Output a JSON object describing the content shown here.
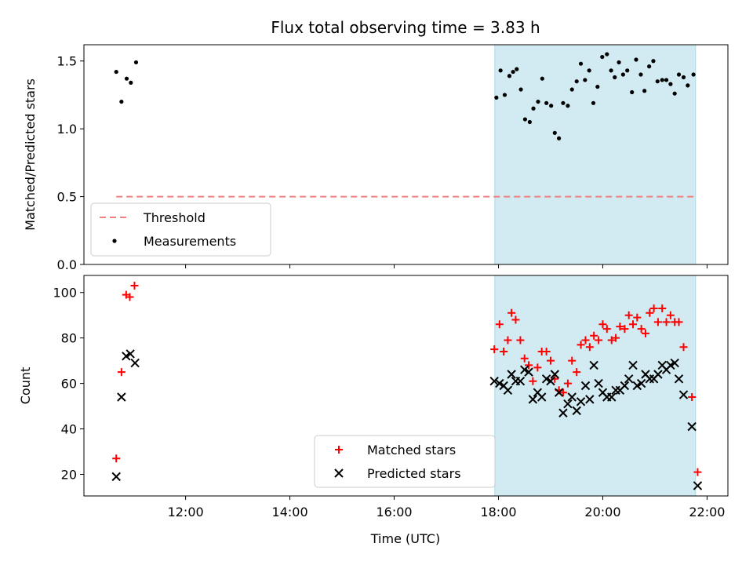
{
  "chart_data": {
    "title": "Flux total observing time = 3.83 h",
    "xlabel": "Time (UTC)",
    "x_unit": "hours UTC",
    "xlim": [
      10.05,
      22.4
    ],
    "x_ticks": [
      {
        "value": 12,
        "label": "12:00"
      },
      {
        "value": 14,
        "label": "14:00"
      },
      {
        "value": 16,
        "label": "16:00"
      },
      {
        "value": 18,
        "label": "18:00"
      },
      {
        "value": 20,
        "label": "20:00"
      },
      {
        "value": 22,
        "label": "22:00"
      }
    ],
    "shaded_span": [
      17.93,
      21.78
    ],
    "colors": {
      "span": "#add8e6",
      "threshold": "#f08080",
      "matched": "#ff0000",
      "predicted": "#000000",
      "measurement": "#000000"
    },
    "panels": [
      {
        "type": "scatter",
        "ylabel": "Matched/Predicted stars",
        "ylim": [
          0,
          1.62
        ],
        "y_ticks": [
          "0.0",
          "0.5",
          "1.0",
          "1.5"
        ],
        "legend_position": "lower-left",
        "threshold": {
          "name": "Threshold",
          "value": 0.5,
          "x_range": [
            10.67,
            21.78
          ]
        },
        "series": [
          {
            "name": "Measurements",
            "points": [
              [
                10.67,
                1.42
              ],
              [
                10.77,
                1.2
              ],
              [
                10.87,
                1.37
              ],
              [
                10.95,
                1.34
              ],
              [
                11.05,
                1.49
              ],
              [
                17.96,
                1.23
              ],
              [
                18.04,
                1.43
              ],
              [
                18.12,
                1.25
              ],
              [
                18.21,
                1.39
              ],
              [
                18.28,
                1.42
              ],
              [
                18.35,
                1.44
              ],
              [
                18.43,
                1.29
              ],
              [
                18.51,
                1.07
              ],
              [
                18.6,
                1.05
              ],
              [
                18.67,
                1.15
              ],
              [
                18.76,
                1.2
              ],
              [
                18.84,
                1.37
              ],
              [
                18.92,
                1.19
              ],
              [
                19.01,
                1.17
              ],
              [
                19.08,
                0.97
              ],
              [
                19.16,
                0.93
              ],
              [
                19.24,
                1.19
              ],
              [
                19.33,
                1.17
              ],
              [
                19.41,
                1.29
              ],
              [
                19.5,
                1.35
              ],
              [
                19.58,
                1.48
              ],
              [
                19.66,
                1.36
              ],
              [
                19.74,
                1.43
              ],
              [
                19.82,
                1.19
              ],
              [
                19.9,
                1.31
              ],
              [
                19.99,
                1.53
              ],
              [
                20.08,
                1.55
              ],
              [
                20.16,
                1.43
              ],
              [
                20.23,
                1.38
              ],
              [
                20.31,
                1.49
              ],
              [
                20.39,
                1.4
              ],
              [
                20.47,
                1.43
              ],
              [
                20.56,
                1.27
              ],
              [
                20.64,
                1.51
              ],
              [
                20.73,
                1.4
              ],
              [
                20.8,
                1.28
              ],
              [
                20.89,
                1.46
              ],
              [
                20.97,
                1.5
              ],
              [
                21.05,
                1.35
              ],
              [
                21.14,
                1.36
              ],
              [
                21.22,
                1.36
              ],
              [
                21.3,
                1.33
              ],
              [
                21.38,
                1.26
              ],
              [
                21.46,
                1.4
              ],
              [
                21.55,
                1.38
              ],
              [
                21.63,
                1.32
              ],
              [
                21.74,
                1.4
              ]
            ]
          }
        ]
      },
      {
        "type": "scatter",
        "ylabel": "Count",
        "ylim": [
          10.5,
          107.5
        ],
        "y_ticks": [
          "20",
          "40",
          "60",
          "80",
          "100"
        ],
        "legend_position": "lower-center",
        "series": [
          {
            "name": "Matched stars",
            "marker": "+",
            "points": [
              [
                10.67,
                27
              ],
              [
                10.77,
                65
              ],
              [
                10.86,
                99
              ],
              [
                10.93,
                98
              ],
              [
                11.02,
                103
              ],
              [
                17.92,
                75
              ],
              [
                18.02,
                86
              ],
              [
                18.1,
                74
              ],
              [
                18.18,
                79
              ],
              [
                18.25,
                91
              ],
              [
                18.33,
                88
              ],
              [
                18.42,
                79
              ],
              [
                18.5,
                71
              ],
              [
                18.58,
                68
              ],
              [
                18.66,
                61
              ],
              [
                18.75,
                67
              ],
              [
                18.83,
                74
              ],
              [
                18.92,
                74
              ],
              [
                19.0,
                70
              ],
              [
                19.08,
                62
              ],
              [
                19.16,
                57
              ],
              [
                19.24,
                56
              ],
              [
                19.33,
                60
              ],
              [
                19.41,
                70
              ],
              [
                19.5,
                65
              ],
              [
                19.58,
                77
              ],
              [
                19.67,
                79
              ],
              [
                19.75,
                76
              ],
              [
                19.83,
                81
              ],
              [
                19.92,
                79
              ],
              [
                20.0,
                86
              ],
              [
                20.08,
                84
              ],
              [
                20.17,
                79
              ],
              [
                20.25,
                80
              ],
              [
                20.33,
                85
              ],
              [
                20.42,
                84
              ],
              [
                20.5,
                90
              ],
              [
                20.58,
                86
              ],
              [
                20.66,
                89
              ],
              [
                20.74,
                84
              ],
              [
                20.82,
                82
              ],
              [
                20.9,
                91
              ],
              [
                20.98,
                93
              ],
              [
                21.06,
                87
              ],
              [
                21.14,
                93
              ],
              [
                21.22,
                87
              ],
              [
                21.3,
                90
              ],
              [
                21.38,
                87
              ],
              [
                21.46,
                87
              ],
              [
                21.55,
                76
              ],
              [
                21.71,
                54
              ],
              [
                21.82,
                21
              ]
            ]
          },
          {
            "name": "Predicted stars",
            "marker": "x",
            "points": [
              [
                10.67,
                19
              ],
              [
                10.77,
                54
              ],
              [
                10.86,
                72
              ],
              [
                10.94,
                73
              ],
              [
                11.03,
                69
              ],
              [
                17.92,
                61
              ],
              [
                18.02,
                60
              ],
              [
                18.1,
                59
              ],
              [
                18.18,
                57
              ],
              [
                18.25,
                64
              ],
              [
                18.33,
                61
              ],
              [
                18.42,
                61
              ],
              [
                18.5,
                66
              ],
              [
                18.58,
                65
              ],
              [
                18.66,
                53
              ],
              [
                18.75,
                56
              ],
              [
                18.83,
                54
              ],
              [
                18.92,
                62
              ],
              [
                19.0,
                61
              ],
              [
                19.08,
                64
              ],
              [
                19.16,
                56
              ],
              [
                19.24,
                47
              ],
              [
                19.33,
                51
              ],
              [
                19.41,
                54
              ],
              [
                19.5,
                48
              ],
              [
                19.58,
                52
              ],
              [
                19.67,
                59
              ],
              [
                19.75,
                53
              ],
              [
                19.83,
                68
              ],
              [
                19.92,
                60
              ],
              [
                20.0,
                56
              ],
              [
                20.08,
                54
              ],
              [
                20.17,
                54
              ],
              [
                20.25,
                57
              ],
              [
                20.33,
                57
              ],
              [
                20.42,
                59
              ],
              [
                20.5,
                62
              ],
              [
                20.58,
                68
              ],
              [
                20.66,
                59
              ],
              [
                20.74,
                60
              ],
              [
                20.82,
                64
              ],
              [
                20.9,
                62
              ],
              [
                20.98,
                62
              ],
              [
                21.06,
                64
              ],
              [
                21.14,
                68
              ],
              [
                21.22,
                66
              ],
              [
                21.3,
                68
              ],
              [
                21.38,
                69
              ],
              [
                21.46,
                62
              ],
              [
                21.55,
                55
              ],
              [
                21.71,
                41
              ],
              [
                21.82,
                15
              ]
            ]
          }
        ]
      }
    ]
  }
}
